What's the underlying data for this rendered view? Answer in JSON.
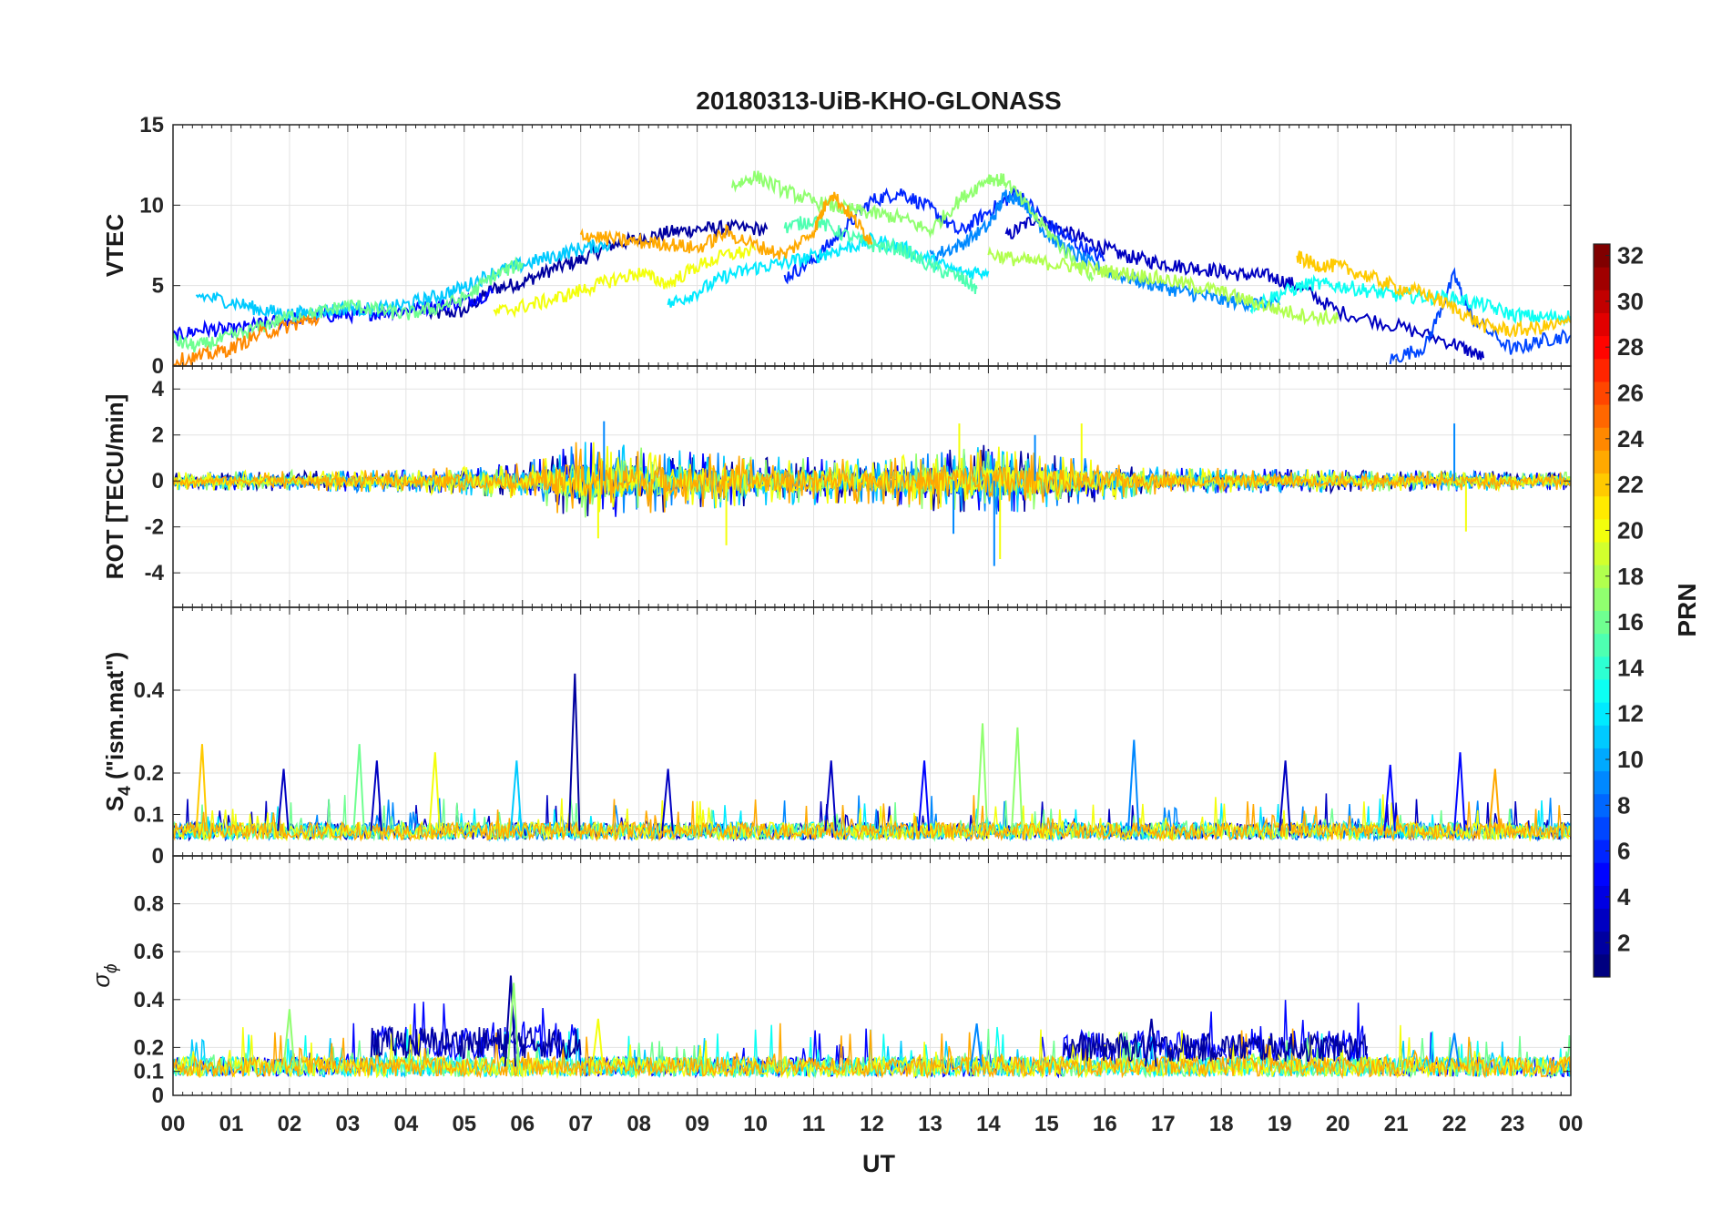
{
  "figure": {
    "title": "20180313-UiB-KHO-GLONASS",
    "xlabel": "UT",
    "x_ticks": [
      "00",
      "01",
      "02",
      "03",
      "04",
      "05",
      "06",
      "07",
      "08",
      "09",
      "10",
      "11",
      "12",
      "13",
      "14",
      "15",
      "16",
      "17",
      "18",
      "19",
      "20",
      "21",
      "22",
      "23",
      "00"
    ]
  },
  "colorbar": {
    "label": "PRN",
    "ticks": [
      "2",
      "4",
      "6",
      "8",
      "10",
      "12",
      "14",
      "16",
      "18",
      "20",
      "22",
      "24",
      "26",
      "28",
      "30",
      "32"
    ],
    "range": [
      1,
      32
    ]
  },
  "chart_data": [
    {
      "type": "line",
      "panel": "vtec",
      "title": "20180313-UiB-KHO-GLONASS",
      "ylabel": "VTEC",
      "ylabel_sub": "",
      "ylabel_tail": "",
      "ylim": [
        0,
        15
      ],
      "yticks": [
        "0",
        "5",
        "10",
        "15"
      ],
      "xlim": [
        0,
        24
      ],
      "xlabel": "UT",
      "grid": true,
      "series": [
        {
          "name": "PRN 2",
          "prn": 2,
          "x": [
            4.4,
            5.0,
            5.5,
            6.0,
            6.5,
            7.0,
            7.5,
            8.0,
            8.5,
            9.0,
            9.5,
            10.2
          ],
          "values": [
            3.2,
            3.4,
            4.8,
            5.2,
            6.0,
            6.6,
            7.5,
            7.9,
            8.3,
            8.5,
            8.6,
            8.5
          ]
        },
        {
          "name": "PRN 3",
          "prn": 3,
          "x": [
            14.3,
            14.8,
            15.3,
            15.8,
            16.3,
            16.8,
            17.3,
            17.8,
            18.3,
            18.8,
            19.3,
            20.0,
            21.0,
            22.0,
            22.5
          ],
          "values": [
            8.0,
            9.2,
            8.4,
            7.6,
            6.9,
            6.5,
            6.2,
            6.0,
            5.7,
            5.6,
            5.0,
            3.4,
            2.5,
            1.4,
            0.5
          ]
        },
        {
          "name": "PRN 5",
          "prn": 5,
          "x": [
            0.0,
            0.5,
            1.0,
            1.5,
            2.0,
            2.5,
            3.0,
            3.5,
            4.0,
            4.5,
            5.0,
            5.5
          ],
          "values": [
            1.8,
            2.3,
            2.2,
            2.6,
            2.9,
            3.1,
            3.2,
            3.3,
            3.5,
            3.7,
            4.0,
            4.6
          ]
        },
        {
          "name": "PRN 6",
          "prn": 6,
          "x": [
            10.5,
            11.0,
            11.5,
            12.0,
            12.5,
            13.0,
            13.5,
            14.0,
            14.5,
            15.0,
            15.5,
            16.0
          ],
          "values": [
            5.5,
            6.6,
            8.4,
            10.3,
            10.8,
            9.8,
            8.3,
            9.6,
            10.8,
            8.9,
            7.6,
            6.6
          ]
        },
        {
          "name": "PRN 7",
          "prn": 7,
          "x": [
            20.9,
            21.5,
            22.0,
            22.3,
            23.0,
            23.5,
            24.0
          ],
          "values": [
            0.4,
            1.2,
            5.6,
            3.0,
            1.0,
            1.6,
            1.9
          ]
        },
        {
          "name": "PRN 9",
          "prn": 9,
          "x": [
            13.0,
            13.5,
            14.0,
            14.3,
            14.6,
            15.0,
            15.5,
            16.0,
            16.5,
            17.0,
            17.5,
            18.0,
            18.5,
            19.0
          ],
          "values": [
            6.8,
            7.5,
            8.7,
            10.7,
            10.3,
            8.2,
            6.9,
            5.9,
            5.4,
            4.9,
            4.5,
            4.1,
            3.9,
            3.8
          ]
        },
        {
          "name": "PRN 11",
          "prn": 11,
          "x": [
            0.4,
            1.0,
            1.5,
            2.0,
            2.5,
            3.0,
            3.5,
            4.0,
            4.5,
            5.0,
            5.5,
            6.0,
            6.5,
            7.0,
            7.5
          ],
          "values": [
            4.4,
            4.0,
            3.5,
            3.2,
            3.4,
            3.6,
            3.5,
            3.8,
            4.3,
            4.9,
            5.8,
            6.3,
            6.8,
            7.3,
            7.6
          ]
        },
        {
          "name": "PRN 12",
          "prn": 12,
          "x": [
            8.5,
            9.0,
            9.5,
            10.0,
            10.5,
            11.0,
            11.5,
            12.0,
            12.5,
            13.0,
            13.5,
            14.0
          ],
          "values": [
            3.8,
            4.6,
            5.6,
            6.1,
            6.4,
            6.8,
            7.3,
            7.8,
            7.4,
            6.6,
            5.8,
            5.9
          ]
        },
        {
          "name": "PRN 13",
          "prn": 13,
          "x": [
            18.5,
            19.0,
            19.5,
            20.0,
            20.5,
            21.0,
            21.5,
            22.0,
            22.5,
            23.0,
            23.5,
            24.0
          ],
          "values": [
            3.7,
            4.5,
            5.1,
            5.0,
            4.7,
            4.4,
            4.3,
            4.2,
            3.8,
            3.2,
            3.0,
            3.1
          ]
        },
        {
          "name": "PRN 15",
          "prn": 15,
          "x": [
            10.5,
            11.0,
            11.5,
            12.0,
            12.5,
            13.0,
            13.5,
            13.8
          ],
          "values": [
            8.6,
            9.1,
            8.2,
            7.5,
            7.3,
            6.2,
            5.5,
            4.8
          ]
        },
        {
          "name": "PRN 16",
          "prn": 16,
          "x": [
            0.0,
            0.4,
            0.9,
            1.5,
            2.0,
            2.5,
            3.0,
            3.5,
            4.0,
            4.5,
            5.0,
            5.5,
            6.0
          ],
          "values": [
            1.6,
            1.2,
            1.7,
            2.4,
            3.1,
            3.3,
            3.8,
            3.5,
            3.2,
            3.6,
            4.2,
            5.6,
            6.4
          ]
        },
        {
          "name": "PRN 17",
          "prn": 17,
          "x": [
            9.6,
            10.0,
            10.5,
            11.0,
            11.5,
            12.0,
            12.5,
            13.0,
            13.5,
            14.0,
            14.3,
            14.8,
            15.3,
            15.8
          ],
          "values": [
            11.2,
            11.8,
            10.9,
            10.2,
            9.8,
            9.5,
            9.2,
            8.4,
            10.3,
            11.7,
            11.5,
            9.3,
            7.2,
            5.5
          ]
        },
        {
          "name": "PRN 18",
          "prn": 18,
          "x": [
            14.0,
            14.5,
            15.0,
            15.5,
            16.0,
            16.5,
            17.0,
            17.5,
            18.0,
            18.5,
            19.0,
            19.5,
            20.0
          ],
          "values": [
            7.0,
            6.6,
            6.4,
            6.2,
            5.9,
            5.7,
            5.4,
            5.0,
            4.6,
            4.0,
            3.5,
            3.1,
            2.9
          ]
        },
        {
          "name": "PRN 20",
          "prn": 20,
          "x": [
            5.5,
            6.0,
            6.5,
            7.0,
            7.5,
            8.0,
            8.5,
            9.0,
            9.5,
            10.0
          ],
          "values": [
            3.3,
            3.7,
            4.1,
            4.7,
            5.3,
            5.8,
            5.1,
            6.2,
            6.9,
            7.2
          ]
        },
        {
          "name": "PRN 22",
          "prn": 22,
          "x": [
            19.3,
            19.6,
            20.0,
            20.5,
            21.0,
            21.5,
            22.0,
            22.5,
            23.0,
            23.5,
            24.0
          ],
          "values": [
            6.8,
            6.3,
            6.2,
            5.6,
            4.9,
            4.5,
            3.6,
            2.5,
            2.2,
            2.4,
            2.7
          ]
        },
        {
          "name": "PRN 23",
          "prn": 23,
          "x": [
            7.0,
            7.5,
            8.0,
            8.5,
            9.0,
            9.5,
            10.0,
            10.5,
            11.0,
            11.3,
            11.7,
            12.0
          ],
          "values": [
            8.2,
            7.9,
            7.7,
            7.6,
            7.3,
            8.3,
            7.5,
            6.9,
            8.4,
            10.8,
            9.1,
            7.7
          ]
        },
        {
          "name": "PRN 24",
          "prn": 24,
          "x": [
            0.0,
            0.5,
            1.0,
            1.5,
            2.0,
            2.5
          ],
          "values": [
            0.3,
            0.6,
            1.1,
            2.0,
            2.5,
            3.0
          ]
        }
      ]
    },
    {
      "type": "line",
      "panel": "rot",
      "title": "",
      "ylabel": "ROT [TECU/min]",
      "ylabel_sub": "",
      "ylabel_tail": "",
      "ylim": [
        -5.5,
        5
      ],
      "yticks": [
        "-4",
        "-2",
        "0",
        "2",
        "4"
      ],
      "xlim": [
        0,
        24
      ],
      "xlabel": "UT",
      "grid": true,
      "noise_level": [
        {
          "x": 0,
          "amp": 0.4
        },
        {
          "x": 4,
          "amp": 0.5
        },
        {
          "x": 6,
          "amp": 0.8
        },
        {
          "x": 7,
          "amp": 1.8
        },
        {
          "x": 8,
          "amp": 1.5
        },
        {
          "x": 10,
          "amp": 1.1
        },
        {
          "x": 12,
          "amp": 1.0
        },
        {
          "x": 14,
          "amp": 1.6
        },
        {
          "x": 15,
          "amp": 1.2
        },
        {
          "x": 17,
          "amp": 0.6
        },
        {
          "x": 20,
          "amp": 0.5
        },
        {
          "x": 24,
          "amp": 0.4
        }
      ],
      "spikes": [
        {
          "x": 7.3,
          "y": -2.5
        },
        {
          "x": 7.4,
          "y": 2.6
        },
        {
          "x": 9.5,
          "y": -2.8
        },
        {
          "x": 13.4,
          "y": -2.3
        },
        {
          "x": 13.5,
          "y": 2.5
        },
        {
          "x": 14.1,
          "y": -3.7
        },
        {
          "x": 14.2,
          "y": -3.4
        },
        {
          "x": 14.8,
          "y": 2.0
        },
        {
          "x": 15.6,
          "y": 2.5
        },
        {
          "x": 22.0,
          "y": 2.5
        },
        {
          "x": 22.2,
          "y": -2.2
        }
      ],
      "series_prns": [
        2,
        5,
        9,
        11,
        17,
        20,
        23
      ]
    },
    {
      "type": "line",
      "panel": "s4",
      "title": "",
      "ylabel": "S",
      "ylabel_sub": "4",
      "ylabel_tail": " (\"ism.mat\")",
      "ylim": [
        0,
        0.6
      ],
      "yticks": [
        "0",
        "0.1",
        "0.2",
        "0.4"
      ],
      "xlim": [
        0,
        24
      ],
      "xlabel": "UT",
      "grid": true,
      "baseline": 0.06,
      "spikes": [
        {
          "x": 0.5,
          "y": 0.27,
          "prn": 22
        },
        {
          "x": 1.9,
          "y": 0.21,
          "prn": 3
        },
        {
          "x": 3.2,
          "y": 0.27,
          "prn": 16
        },
        {
          "x": 3.5,
          "y": 0.23,
          "prn": 3
        },
        {
          "x": 4.5,
          "y": 0.25,
          "prn": 20
        },
        {
          "x": 5.9,
          "y": 0.23,
          "prn": 11
        },
        {
          "x": 6.9,
          "y": 0.44,
          "prn": 2
        },
        {
          "x": 8.5,
          "y": 0.21,
          "prn": 3
        },
        {
          "x": 11.3,
          "y": 0.23,
          "prn": 3
        },
        {
          "x": 12.9,
          "y": 0.23,
          "prn": 5
        },
        {
          "x": 13.9,
          "y": 0.32,
          "prn": 17
        },
        {
          "x": 14.5,
          "y": 0.31,
          "prn": 17
        },
        {
          "x": 16.5,
          "y": 0.28,
          "prn": 9
        },
        {
          "x": 19.1,
          "y": 0.23,
          "prn": 3
        },
        {
          "x": 20.9,
          "y": 0.22,
          "prn": 5
        },
        {
          "x": 22.1,
          "y": 0.25,
          "prn": 5
        },
        {
          "x": 22.7,
          "y": 0.21,
          "prn": 23
        }
      ],
      "series_prns": [
        3,
        9,
        12,
        16,
        20,
        23
      ]
    },
    {
      "type": "line",
      "panel": "sigma",
      "title": "",
      "ylabel": "σ",
      "ylabel_sub": "ϕ",
      "ylabel_tail": "",
      "ylim": [
        0,
        1
      ],
      "yticks": [
        "0",
        "0.1",
        "0.2",
        "0.4",
        "0.6",
        "0.8"
      ],
      "xlim": [
        0,
        24
      ],
      "xlabel": "UT",
      "grid": true,
      "baseline": 0.12,
      "elevated_band": [
        {
          "from": 3.4,
          "to": 7.0,
          "level": 0.22,
          "prn": 2
        },
        {
          "from": 15.3,
          "to": 20.5,
          "level": 0.2,
          "prn": 2
        }
      ],
      "spikes": [
        {
          "x": 2.0,
          "y": 0.36,
          "prn": 17
        },
        {
          "x": 5.8,
          "y": 0.5,
          "prn": 2
        },
        {
          "x": 5.85,
          "y": 0.47,
          "prn": 17
        },
        {
          "x": 7.3,
          "y": 0.32,
          "prn": 20
        },
        {
          "x": 13.8,
          "y": 0.3,
          "prn": 9
        },
        {
          "x": 16.8,
          "y": 0.32,
          "prn": 2
        },
        {
          "x": 22.0,
          "y": 0.26,
          "prn": 9
        }
      ],
      "series_prns": [
        5,
        11,
        13,
        16,
        20,
        23
      ]
    }
  ]
}
